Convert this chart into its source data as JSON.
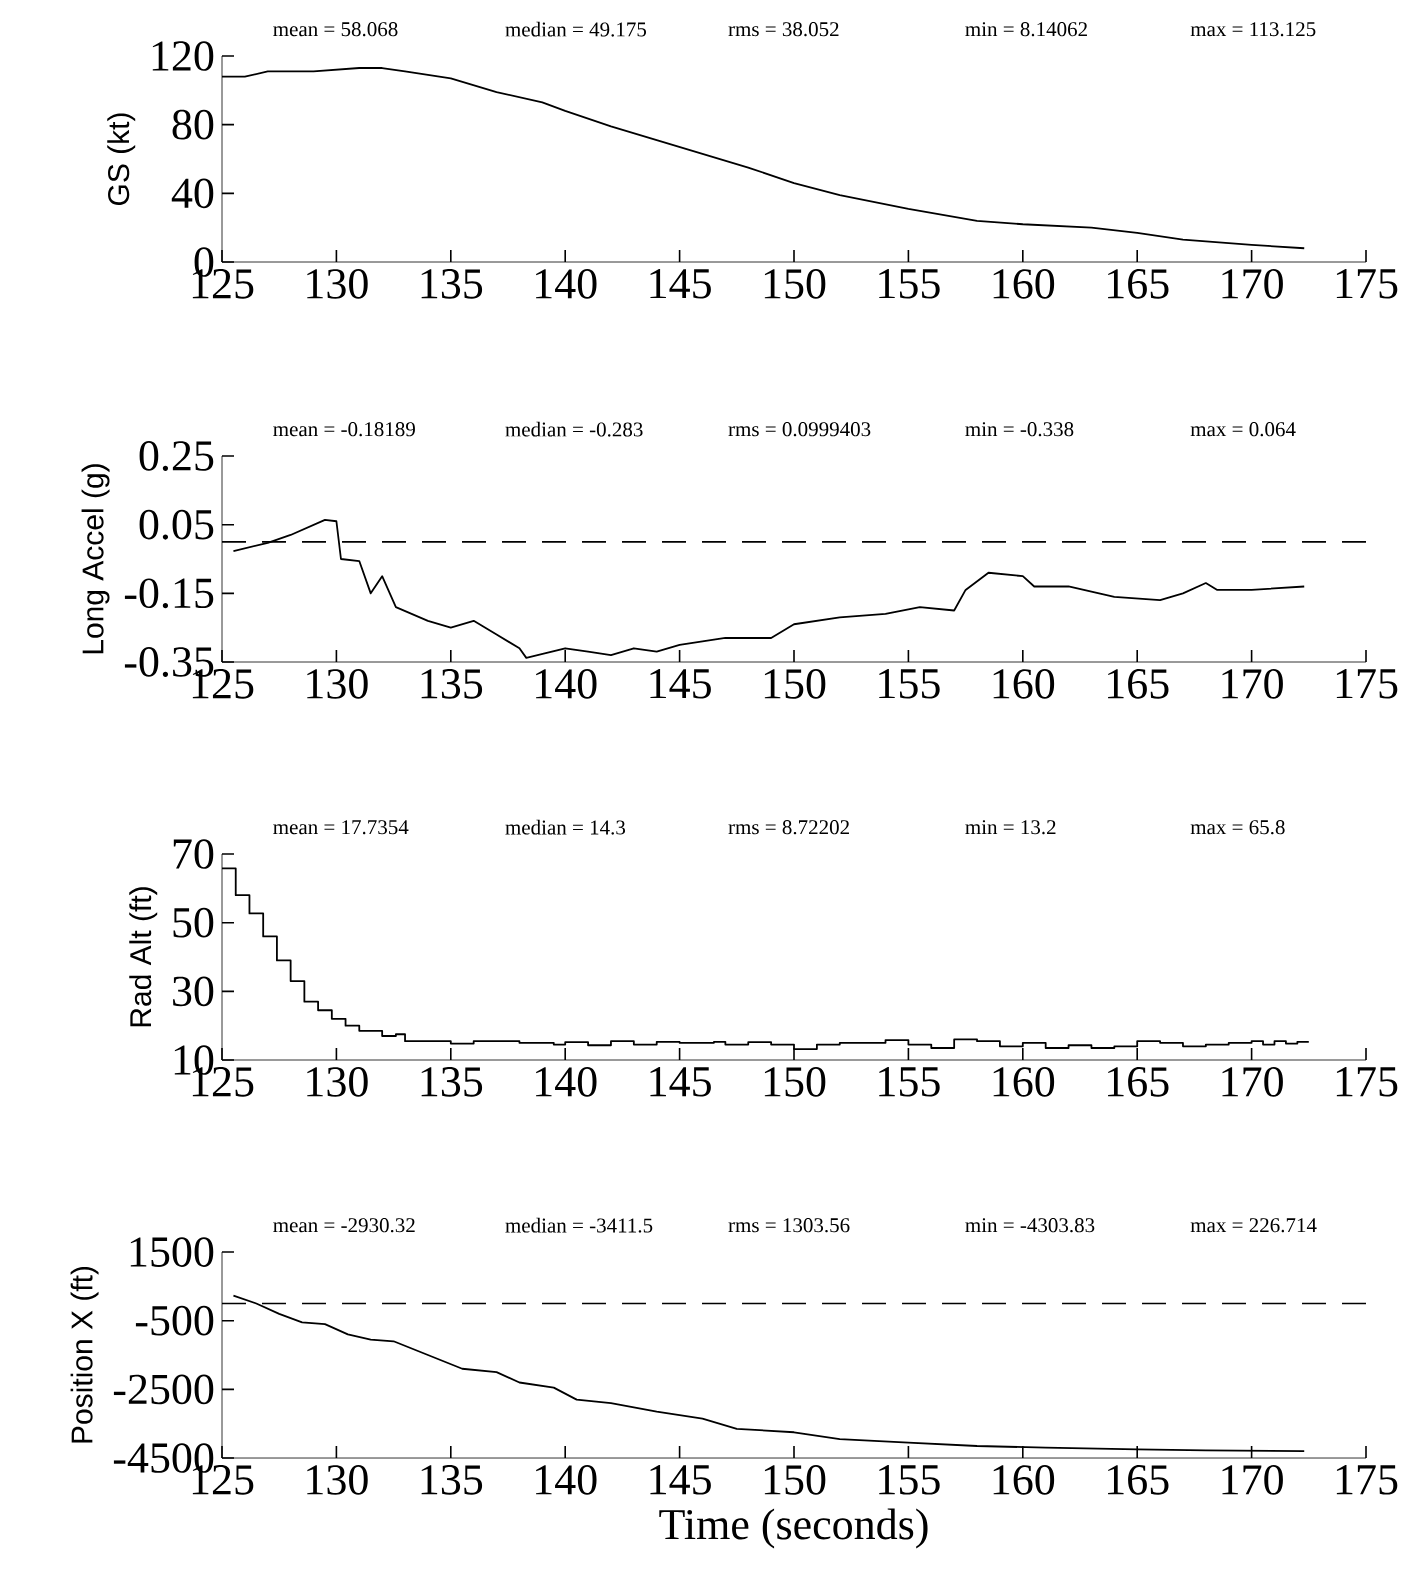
{
  "chart_data": [
    {
      "type": "line",
      "ylabel": "GS (kt)",
      "xlim": [
        125,
        175
      ],
      "xticks": [
        125,
        130,
        135,
        140,
        145,
        150,
        155,
        160,
        165,
        170,
        175
      ],
      "ylim": [
        0,
        120
      ],
      "yticks": [
        0,
        40,
        80,
        120
      ],
      "annotations": [
        "mean = 58.068",
        "median = 49.175",
        "rms = 38.052",
        "min = 8.14062",
        "max = 113.125"
      ],
      "x": [
        125,
        126,
        127,
        129,
        131,
        132,
        133,
        135,
        137,
        139,
        140,
        142,
        144,
        146,
        148,
        150,
        152,
        155,
        158,
        160,
        163,
        165,
        167,
        170,
        172.3
      ],
      "series": [
        {
          "color": "#000000",
          "values": [
            108,
            108,
            111,
            111,
            113,
            113,
            111,
            107,
            99,
            93,
            88,
            79,
            71,
            63,
            55,
            46,
            39,
            31,
            24,
            22,
            20,
            17,
            13,
            10,
            8
          ]
        }
      ]
    },
    {
      "type": "line",
      "ylabel": "Long Accel (g)",
      "xlim": [
        125,
        175
      ],
      "xticks": [
        125,
        130,
        135,
        140,
        145,
        150,
        155,
        160,
        165,
        170,
        175
      ],
      "ylim": [
        -0.35,
        0.25
      ],
      "yticks": [
        -0.35,
        -0.15,
        0.05,
        0.25
      ],
      "annotations": [
        "mean = -0.18189",
        "median = -0.283",
        "rms = 0.0999403",
        "min = -0.338",
        "max = 0.064"
      ],
      "ref_lines": [
        {
          "axis": "y",
          "value": 0,
          "color": "#000000",
          "line_style": "dashed"
        }
      ],
      "x": [
        125.5,
        127,
        128,
        129.5,
        130,
        130.2,
        131,
        131.5,
        132,
        132.6,
        134,
        135,
        136,
        137,
        138,
        138.3,
        140,
        141,
        142,
        143,
        144,
        145,
        147,
        149,
        150,
        152,
        154,
        155.5,
        157,
        157.5,
        158.5,
        160,
        160.5,
        162,
        164,
        166,
        167,
        168,
        168.5,
        170,
        172.3
      ],
      "series": [
        {
          "color": "#000000",
          "values": [
            -0.027,
            -0.003,
            0.02,
            0.064,
            0.06,
            -0.05,
            -0.056,
            -0.15,
            -0.1,
            -0.19,
            -0.23,
            -0.25,
            -0.23,
            -0.27,
            -0.31,
            -0.338,
            -0.31,
            -0.32,
            -0.33,
            -0.31,
            -0.32,
            -0.3,
            -0.28,
            -0.28,
            -0.24,
            -0.22,
            -0.21,
            -0.19,
            -0.2,
            -0.14,
            -0.09,
            -0.1,
            -0.13,
            -0.13,
            -0.16,
            -0.17,
            -0.15,
            -0.12,
            -0.14,
            -0.14,
            -0.13
          ]
        }
      ]
    },
    {
      "type": "step",
      "ylabel": "Rad Alt (ft)",
      "xlim": [
        125,
        175
      ],
      "xticks": [
        125,
        130,
        135,
        140,
        145,
        150,
        155,
        160,
        165,
        170,
        175
      ],
      "ylim": [
        10,
        70
      ],
      "yticks": [
        10,
        30,
        50,
        70
      ],
      "annotations": [
        "mean = 17.7354",
        "median = 14.3",
        "rms = 8.72202",
        "min = 13.2",
        "max = 65.8"
      ],
      "x": [
        125,
        125.6,
        126.2,
        126.8,
        127.4,
        128,
        128.6,
        129.2,
        129.8,
        130.4,
        131,
        132,
        132.6,
        133,
        135,
        136,
        138,
        139.5,
        140,
        141,
        142,
        143,
        144,
        145,
        146.5,
        147,
        148,
        149,
        150,
        151,
        152,
        154,
        155,
        156,
        157,
        158,
        159,
        160,
        161,
        162,
        163,
        164,
        165,
        166,
        167,
        168,
        169,
        170,
        170.5,
        171,
        171.5,
        172,
        172.5
      ],
      "series": [
        {
          "color": "#000000",
          "values": [
            65.8,
            58,
            52.7,
            46,
            39,
            33,
            27,
            24.5,
            22,
            20,
            18.5,
            17,
            17.5,
            15.5,
            14.8,
            15.5,
            15,
            14.5,
            15.2,
            14.3,
            15.5,
            14.5,
            15.3,
            15,
            15.3,
            14.5,
            15.2,
            14.5,
            13.2,
            14.5,
            15,
            15.8,
            14.5,
            13.5,
            16,
            15.5,
            14,
            15,
            13.5,
            14.3,
            13.5,
            14,
            15.5,
            15,
            14,
            14.5,
            15,
            15.5,
            14.5,
            15.5,
            14.8,
            15.3,
            15.3
          ]
        }
      ]
    },
    {
      "type": "line",
      "ylabel": "Position X (ft)",
      "xlabel": "Time (seconds)",
      "xlim": [
        125,
        175
      ],
      "xticks": [
        125,
        130,
        135,
        140,
        145,
        150,
        155,
        160,
        165,
        170,
        175
      ],
      "ylim": [
        -4500,
        1500
      ],
      "yticks": [
        -4500,
        -2500,
        -500,
        1500
      ],
      "annotations": [
        "mean = -2930.32",
        "median = -3411.5",
        "rms = 1303.56",
        "min = -4303.83",
        "max = 226.714"
      ],
      "ref_lines": [
        {
          "axis": "y",
          "value": 0,
          "color": "#000000",
          "line_style": "dashed"
        }
      ],
      "x": [
        125.5,
        126.5,
        127.5,
        128.5,
        129.5,
        130.5,
        131.5,
        132.5,
        134,
        135.5,
        137,
        138,
        139.5,
        140.5,
        142,
        144,
        146,
        147.5,
        150,
        152,
        155,
        158,
        161,
        165,
        168,
        172.3
      ],
      "series": [
        {
          "color": "#000000",
          "values": [
            230,
            0,
            -300,
            -550,
            -600,
            -900,
            -1050,
            -1100,
            -1500,
            -1900,
            -2000,
            -2300,
            -2450,
            -2800,
            -2900,
            -3150,
            -3350,
            -3650,
            -3750,
            -3950,
            -4050,
            -4150,
            -4200,
            -4250,
            -4280,
            -4300
          ]
        }
      ]
    }
  ]
}
